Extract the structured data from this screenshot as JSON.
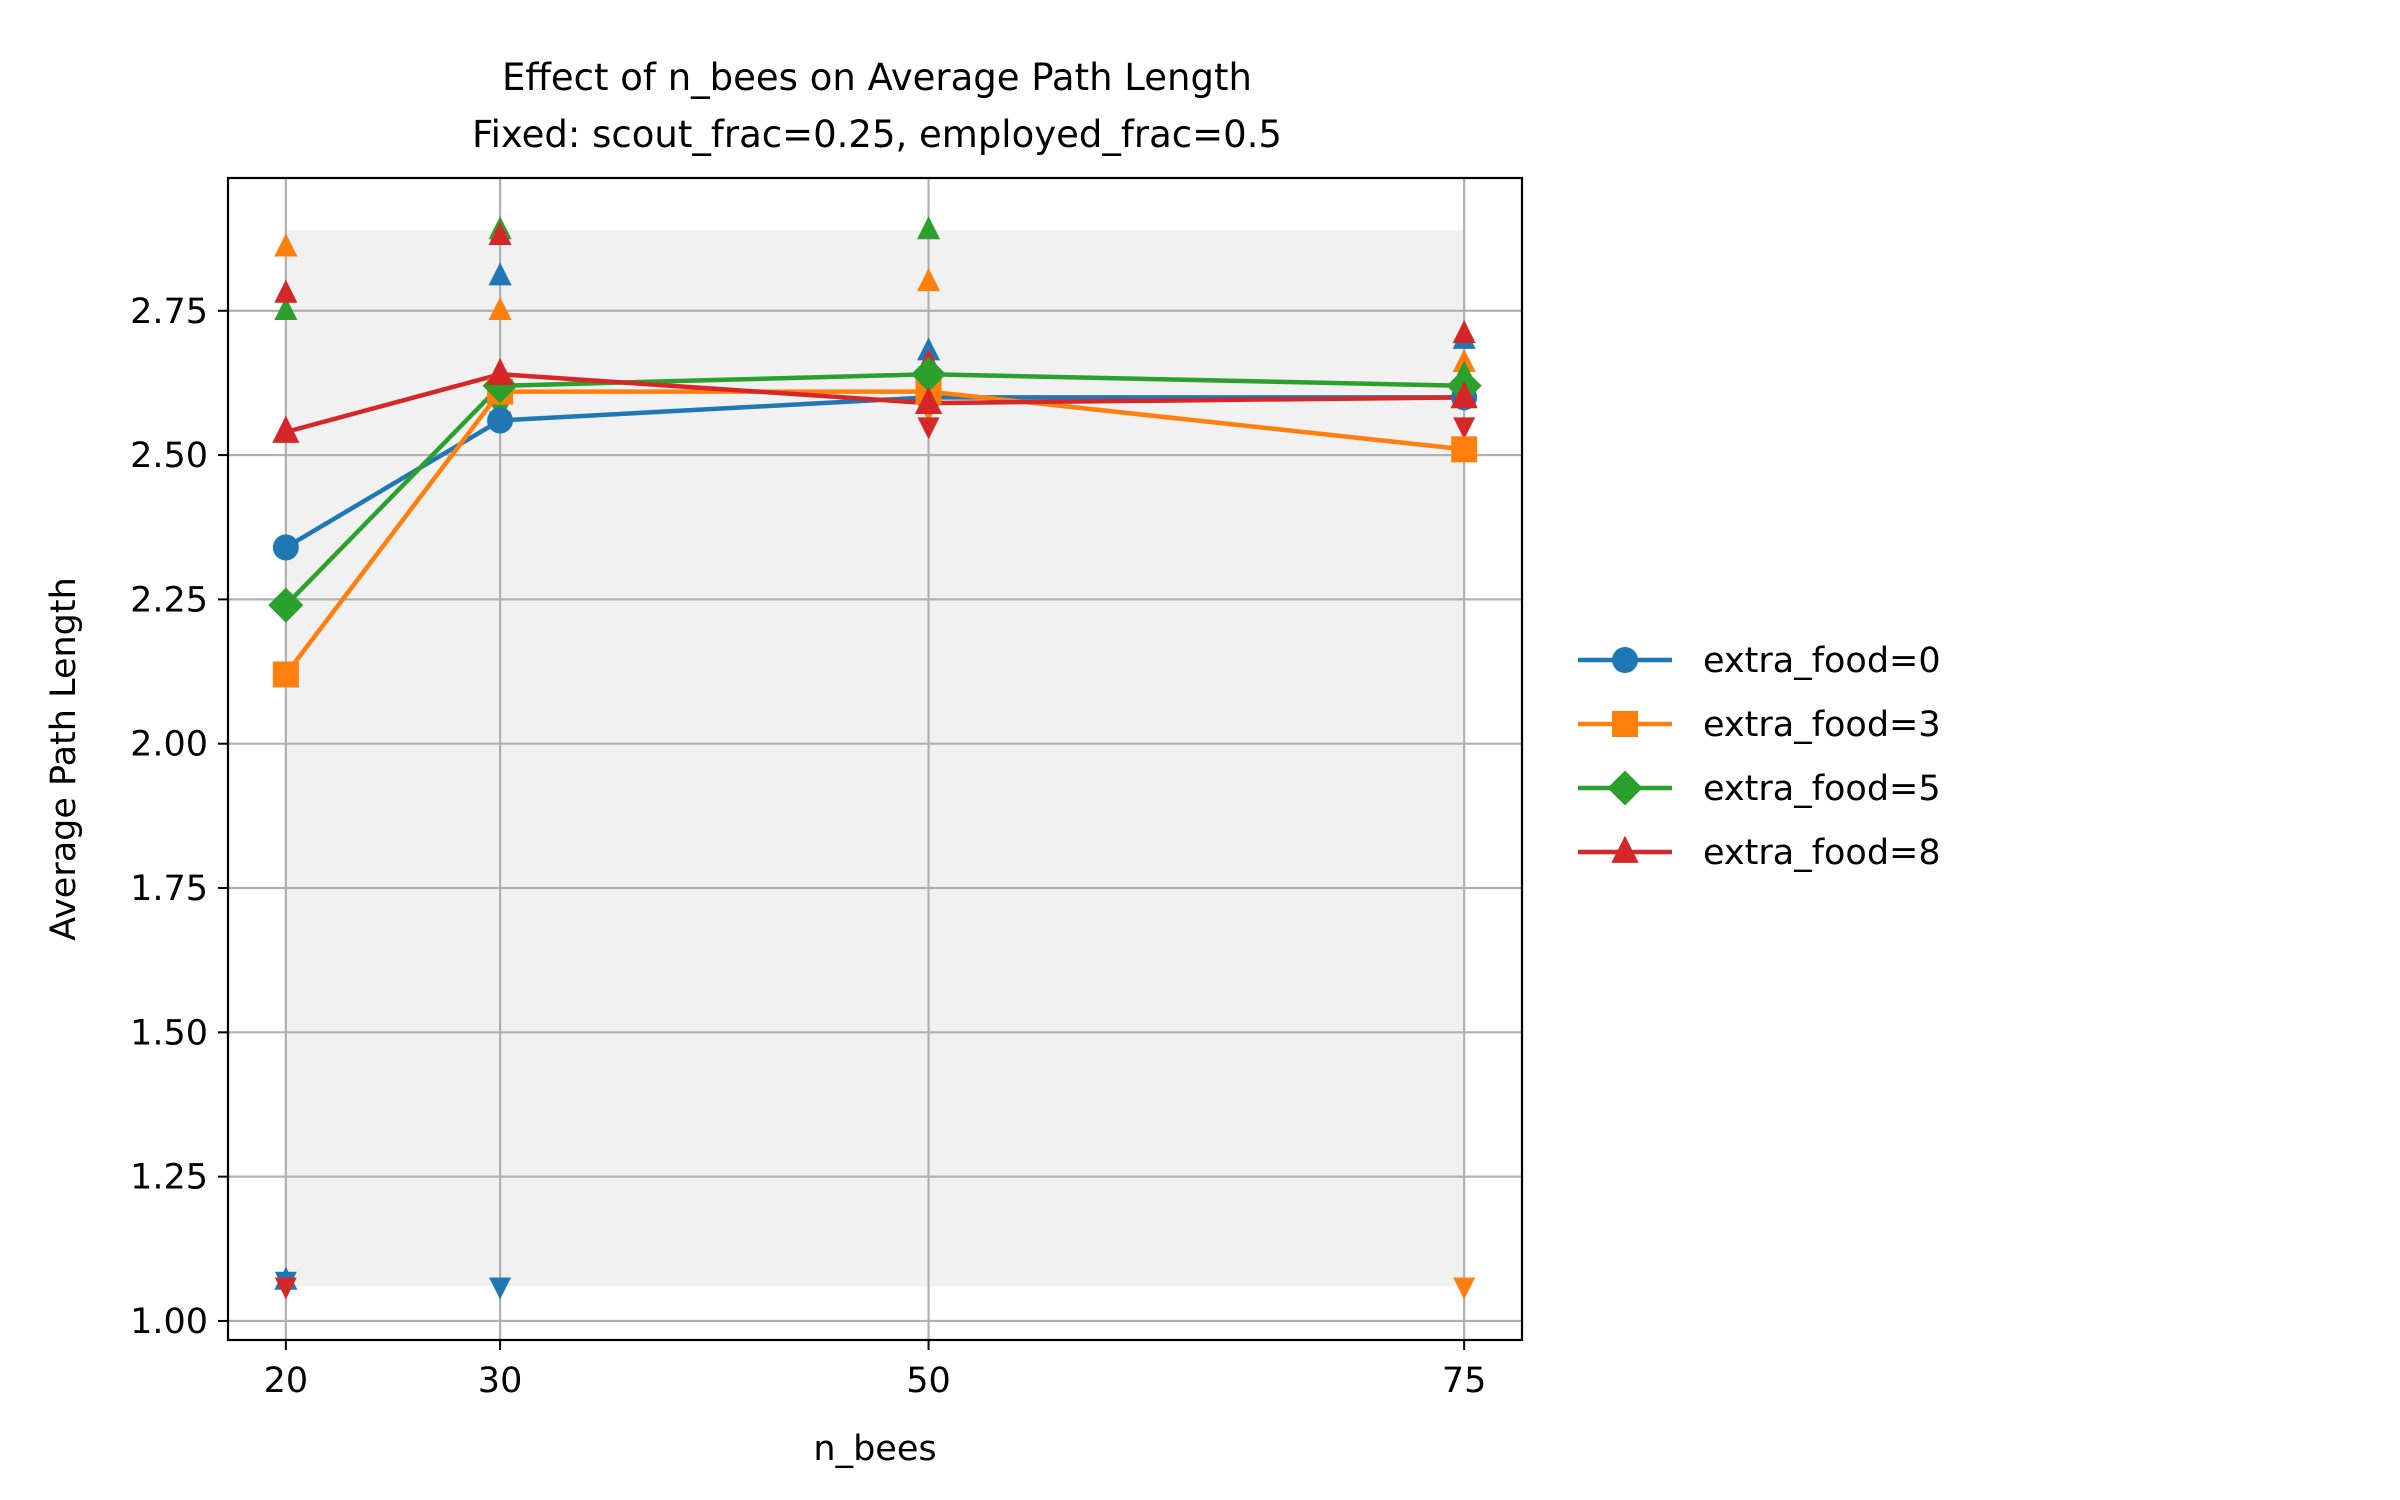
{
  "chart_data": {
    "type": "line",
    "title": "Effect of n_bees on Average Path Length",
    "subtitle": "Fixed: scout_frac=0.25, employed_frac=0.5",
    "xlabel": "n_bees",
    "ylabel": "Average Path Length",
    "x": [
      20,
      30,
      50,
      75
    ],
    "xticks": [
      "20",
      "30",
      "50",
      "75"
    ],
    "yticks": [
      "1.00",
      "1.25",
      "1.50",
      "1.75",
      "2.00",
      "2.25",
      "2.50",
      "2.75"
    ],
    "xlim": [
      17.3,
      77.7
    ],
    "ylim": [
      0.967,
      2.98
    ],
    "grid": true,
    "legend_position": "outside-right",
    "band": {
      "y_min": 1.06,
      "y_max": 2.89,
      "color": "#e6e6e6"
    },
    "series": [
      {
        "name": "extra_food=0",
        "color": "#1f77b4",
        "marker": "circle",
        "values": [
          2.34,
          2.56,
          2.6,
          2.6
        ],
        "max": [
          1.07,
          2.81,
          2.68,
          2.7
        ],
        "min": [
          1.07,
          1.06,
          null,
          2.61
        ]
      },
      {
        "name": "extra_food=3",
        "color": "#ff7f0e",
        "marker": "square",
        "values": [
          2.12,
          2.61,
          2.61,
          2.51
        ],
        "max": [
          2.86,
          2.75,
          2.8,
          2.66
        ],
        "min": [
          null,
          2.56,
          2.58,
          1.06
        ]
      },
      {
        "name": "extra_food=5",
        "color": "#2ca02c",
        "marker": "diamond",
        "values": [
          2.24,
          2.62,
          2.64,
          2.62
        ],
        "max": [
          2.75,
          2.89,
          2.89,
          2.64
        ],
        "min": [
          null,
          2.58,
          2.6,
          2.6
        ]
      },
      {
        "name": "extra_food=8",
        "color": "#d62728",
        "marker": "triangle",
        "values": [
          2.54,
          2.64,
          2.59,
          2.6
        ],
        "max": [
          2.78,
          2.88,
          2.66,
          2.71
        ],
        "min": [
          1.06,
          2.56,
          2.55,
          2.55
        ]
      }
    ]
  }
}
